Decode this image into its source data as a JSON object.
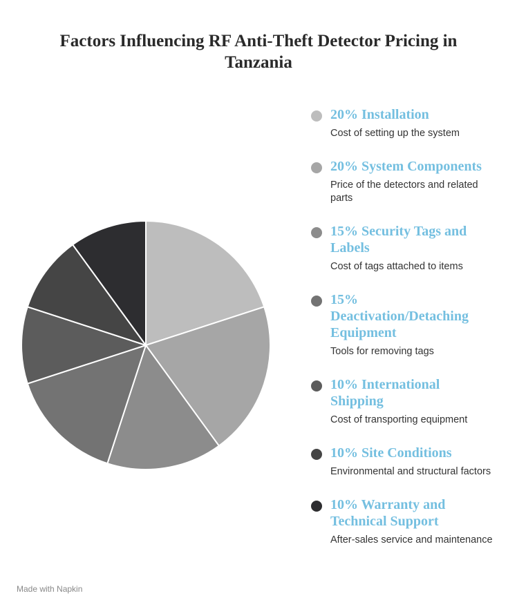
{
  "chart_data": {
    "type": "pie",
    "title": "Factors Influencing RF Anti-Theft Detector Pricing in Tanzania",
    "categories": [
      "Installation",
      "System Components",
      "Security Tags and Labels",
      "Deactivation/Detaching Equipment",
      "International Shipping",
      "Site Conditions",
      "Warranty and Technical Support"
    ],
    "values": [
      20,
      20,
      15,
      15,
      10,
      10,
      10
    ],
    "value_labels": [
      "20%",
      "20%",
      "15%",
      "15%",
      "10%",
      "10%",
      "10%"
    ],
    "descriptions": [
      "Cost of setting up the system",
      "Price of the detectors and related parts",
      "Cost of tags attached to items",
      "Tools for removing tags",
      "Cost of transporting equipment",
      "Environmental and structural factors",
      "After-sales service and maintenance"
    ],
    "colors": [
      "#bdbdbd",
      "#a6a6a6",
      "#8c8c8c",
      "#737373",
      "#5c5c5c",
      "#454545",
      "#2d2d30"
    ],
    "footer": "Made with Napkin"
  }
}
